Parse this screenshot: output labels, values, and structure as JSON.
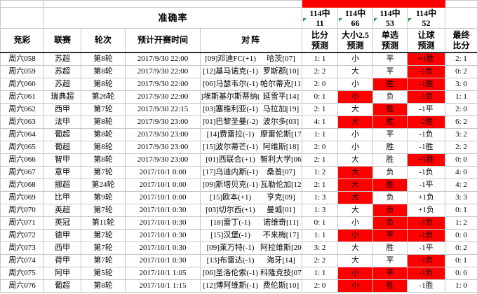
{
  "header": {
    "accuracy_label": "准确率",
    "accuracy_stats": [
      {
        "total": "114中",
        "hits": "11"
      },
      {
        "total": "114中",
        "hits": "66"
      },
      {
        "total": "114中",
        "hits": "53"
      },
      {
        "total": "114中",
        "hits": "52"
      }
    ],
    "columns": [
      "竞彩",
      "联赛",
      "轮次",
      "预计开赛时间",
      "对阵",
      "比分\n预测",
      "大小2.5\n预测",
      "单选\n预测",
      "让球\n预测",
      "最终\n比分"
    ]
  },
  "colors": {
    "hit_highlight": "#ff0000",
    "cell_marker_green": "#1e9e40",
    "grid_line": "#c6c6c6"
  },
  "rows": [
    {
      "id": "周六058",
      "league": "苏超",
      "round": "第8轮",
      "time": "2017/9/30 22:00",
      "home": "[09]邓迪FC(+1)",
      "away": "哈茨[07]",
      "score_pred": "1: 1",
      "ou": "小",
      "ou_hit": false,
      "pick": "平",
      "pick_hit": false,
      "handicap": "+1胜",
      "handicap_hit": true,
      "final": "2: 1"
    },
    {
      "id": "周六059",
      "league": "苏超",
      "round": "第8轮",
      "time": "2017/9/30 22:00",
      "home": "[12]基马诺克(-1)",
      "away": "罗斯郡[10]",
      "score_pred": "2: 2",
      "ou": "大",
      "ou_hit": false,
      "pick": "平",
      "pick_hit": false,
      "handicap": "-1负",
      "handicap_hit": true,
      "final": "0: 2"
    },
    {
      "id": "周六060",
      "league": "苏超",
      "round": "第8轮",
      "time": "2017/9/30 22:00",
      "home": "[06]马瑟韦尔(-1)",
      "away": "帕尔蒂克[11]",
      "score_pred": "2: 0",
      "ou": "小",
      "ou_hit": false,
      "pick": "胜",
      "pick_hit": true,
      "handicap": "-1胜",
      "handicap_hit": true,
      "final": "3: 0"
    },
    {
      "id": "周六061",
      "league": "瑞典超",
      "round": "第26轮",
      "time": "2017/9/30 22:00",
      "home": "]埃斯基尔斯蒂纳(",
      "away": "延雪平[14]",
      "score_pred": "0: 1",
      "ou": "小",
      "ou_hit": true,
      "pick": "负",
      "pick_hit": false,
      "handicap": "-1负",
      "handicap_hit": true,
      "final": "1: 1"
    },
    {
      "id": "周六062",
      "league": "西甲",
      "round": "第7轮",
      "time": "2017/9/30 22:15",
      "home": "[03]塞维利亚(-1)",
      "away": "马拉加[19]",
      "score_pred": "2: 1",
      "ou": "大",
      "ou_hit": false,
      "pick": "胜",
      "pick_hit": true,
      "handicap": "-1平",
      "handicap_hit": false,
      "final": "2: 0"
    },
    {
      "id": "周六063",
      "league": "法甲",
      "round": "第8轮",
      "time": "2017/9/30 23:00",
      "home": "[01]巴黎圣曼(-2)",
      "away": "波尔多[03]",
      "score_pred": "4: 1",
      "ou": "大",
      "ou_hit": true,
      "pick": "胜",
      "pick_hit": true,
      "handicap": "-2胜",
      "handicap_hit": true,
      "final": "6: 2"
    },
    {
      "id": "周六064",
      "league": "葡超",
      "round": "第8轮",
      "time": "2017/9/30 23:00",
      "home": "[14]费雷拉(-1)",
      "away": "摩雷伦斯[17]",
      "score_pred": "1: 1",
      "ou": "小",
      "ou_hit": false,
      "pick": "平",
      "pick_hit": false,
      "handicap": "-1负",
      "handicap_hit": false,
      "final": "3: 2"
    },
    {
      "id": "周六065",
      "league": "葡超",
      "round": "第8轮",
      "time": "2017/9/30 23:00",
      "home": "[15]波尔蒂芒(-1)",
      "away": "阿维斯[18]",
      "score_pred": "2: 0",
      "ou": "小",
      "ou_hit": false,
      "pick": "胜",
      "pick_hit": false,
      "handicap": "-1胜",
      "handicap_hit": false,
      "final": "2: 2"
    },
    {
      "id": "周六066",
      "league": "智甲",
      "round": "第8轮",
      "time": "2017/9/30 23:00",
      "home": "[01]西联合(+1)",
      "away": "智利大学[06]",
      "score_pred": "2: 1",
      "ou": "大",
      "ou_hit": false,
      "pick": "胜",
      "pick_hit": false,
      "handicap": "+1胜",
      "handicap_hit": true,
      "final": "0: 0"
    },
    {
      "id": "周六067",
      "league": "意甲",
      "round": "第7轮",
      "time": "2017/10/1 0:00",
      "home": "[17]乌迪内斯(-1)",
      "away": "桑普[07]",
      "score_pred": "1: 2",
      "ou": "大",
      "ou_hit": true,
      "pick": "负",
      "pick_hit": false,
      "handicap": "-1负",
      "handicap_hit": false,
      "final": "4: 0"
    },
    {
      "id": "周六068",
      "league": "挪超",
      "round": "第24轮",
      "time": "2017/10/1 0:00",
      "home": "[09]斯塔贝克(-1)",
      "away": "瓦勒伦加[12]",
      "score_pred": "2: 1",
      "ou": "大",
      "ou_hit": true,
      "pick": "胜",
      "pick_hit": true,
      "handicap": "-1平",
      "handicap_hit": false,
      "final": "4: 2"
    },
    {
      "id": "周六069",
      "league": "比甲",
      "round": "第9轮",
      "time": "2017/10/1 0:00",
      "home": "[15]欧本(+1)",
      "away": "亨克[09]",
      "score_pred": "1: 3",
      "ou": "大",
      "ou_hit": true,
      "pick": "负",
      "pick_hit": false,
      "handicap": "+1负",
      "handicap_hit": false,
      "final": "3: 3"
    },
    {
      "id": "周六070",
      "league": "英超",
      "round": "第7轮",
      "time": "2017/10/1 0:30",
      "home": "[03]切尔西(+1)",
      "away": "曼城[01]",
      "score_pred": "1: 3",
      "ou": "大",
      "ou_hit": false,
      "pick": "负",
      "pick_hit": true,
      "handicap": "+1负",
      "handicap_hit": false,
      "final": "0: 1"
    },
    {
      "id": "周六071",
      "league": "英冠",
      "round": "第11轮",
      "time": "2017/10/1 0:30",
      "home": "[18]雷丁(-1)",
      "away": "诺维奇[11]",
      "score_pred": "0: 1",
      "ou": "小",
      "ou_hit": false,
      "pick": "负",
      "pick_hit": true,
      "handicap": "-1负",
      "handicap_hit": true,
      "final": "1: 2"
    },
    {
      "id": "周六072",
      "league": "德甲",
      "round": "第7轮",
      "time": "2017/10/1 0:30",
      "home": "[15]汉堡(-1)",
      "away": "不来梅[17]",
      "score_pred": "1: 1",
      "ou": "小",
      "ou_hit": true,
      "pick": "平",
      "pick_hit": true,
      "handicap": "-1负",
      "handicap_hit": true,
      "final": "0: 0"
    },
    {
      "id": "周六073",
      "league": "西甲",
      "round": "第7轮",
      "time": "2017/10/1 0:30",
      "home": "[09]莱万特(-1)",
      "away": "阿拉维斯[20]",
      "score_pred": "3: 2",
      "ou": "大",
      "ou_hit": false,
      "pick": "胜",
      "pick_hit": false,
      "handicap": "-1平",
      "handicap_hit": false,
      "final": "0: 2"
    },
    {
      "id": "周六074",
      "league": "荷甲",
      "round": "第7轮",
      "time": "2017/10/1 0:30",
      "home": "[13]布雷达(-1)",
      "away": "海牙[14]",
      "score_pred": "2: 2",
      "ou": "大",
      "ou_hit": false,
      "pick": "平",
      "pick_hit": false,
      "handicap": "-1负",
      "handicap_hit": true,
      "final": "0: 1"
    },
    {
      "id": "周六075",
      "league": "阿甲",
      "round": "第5轮",
      "time": "2017/10/1 1:05",
      "home": "[06]圣洛伦索(-1)",
      "away": "科隆竞技[07]",
      "score_pred": "1: 1",
      "ou": "小",
      "ou_hit": true,
      "pick": "平",
      "pick_hit": true,
      "handicap": "-1负",
      "handicap_hit": true,
      "final": "0: 0"
    },
    {
      "id": "周六076",
      "league": "葡超",
      "round": "第8轮",
      "time": "2017/10/1 1:15",
      "home": "[12]博阿维斯(-1)",
      "away": "费伦斯[10]",
      "score_pred": "2: 0",
      "ou": "小",
      "ou_hit": true,
      "pick": "胜",
      "pick_hit": true,
      "handicap": "-1胜",
      "handicap_hit": false,
      "final": "1: 0"
    }
  ]
}
